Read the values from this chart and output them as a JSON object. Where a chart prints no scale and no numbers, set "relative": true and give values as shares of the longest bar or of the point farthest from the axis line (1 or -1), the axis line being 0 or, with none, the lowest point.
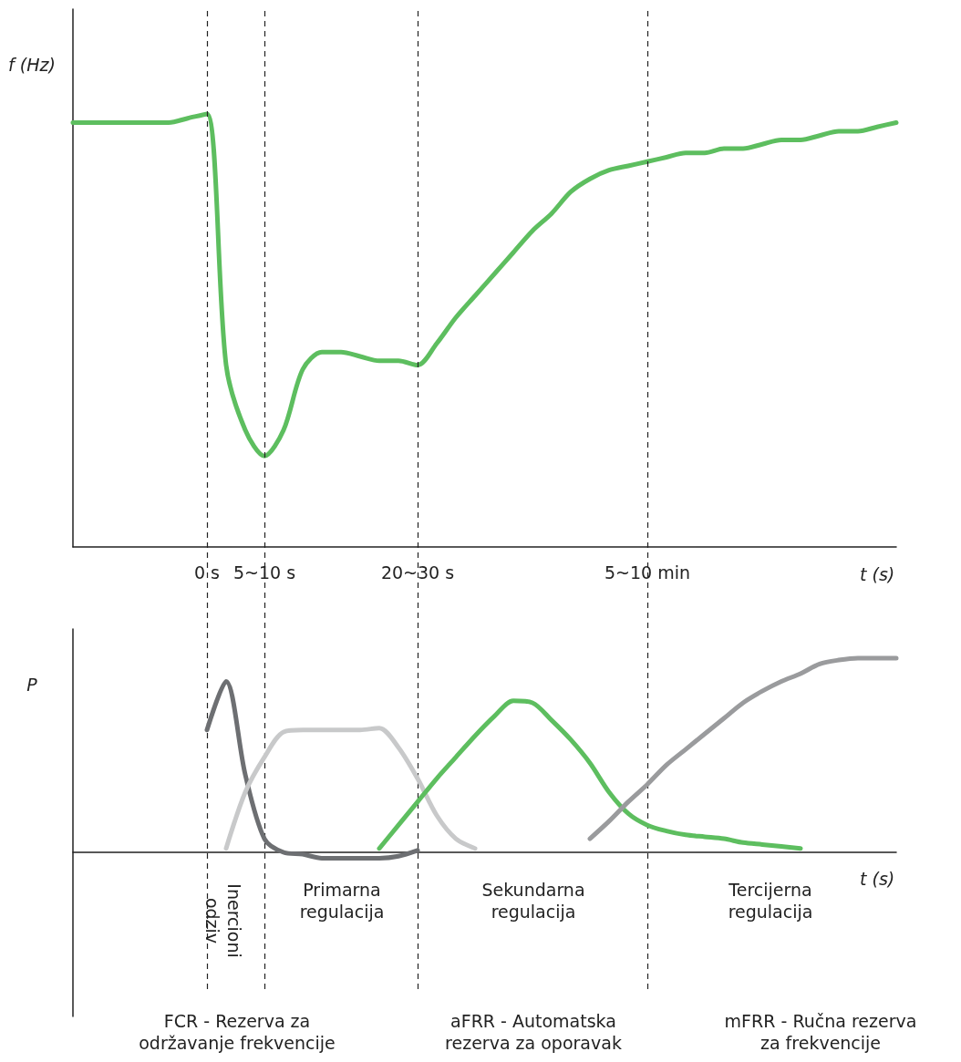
{
  "chart_data": [
    {
      "type": "line",
      "ylabel": "f (Hz)",
      "xlabel": "t (s)",
      "relative": true,
      "grid": false,
      "marker": "none",
      "categories": [
        null,
        null,
        null,
        null,
        null,
        null,
        null,
        "0 s",
        null,
        null,
        "5~10 s",
        null,
        null,
        null,
        null,
        null,
        null,
        null,
        "20~30 s",
        null,
        null,
        null,
        null,
        null,
        null,
        null,
        null,
        null,
        null,
        null,
        "5~10 min",
        null,
        null,
        null,
        null,
        null,
        null,
        null,
        null,
        null,
        null,
        null,
        null,
        null
      ],
      "series": [
        {
          "color": "#5dbe5f",
          "values": [
            0.98,
            0.98,
            0.98,
            0.98,
            0.98,
            0.98,
            0.99,
            1,
            0.42,
            0.27,
            0.21,
            0.27,
            0.41,
            0.45,
            0.45,
            0.44,
            0.43,
            0.43,
            0.42,
            0.47,
            0.53,
            0.58,
            0.63,
            0.68,
            0.73,
            0.77,
            0.82,
            0.85,
            0.87,
            0.88,
            0.89,
            0.9,
            0.91,
            0.91,
            0.92,
            0.92,
            0.93,
            0.94,
            0.94,
            0.95,
            0.96,
            0.96,
            0.97,
            0.98
          ]
        }
      ],
      "ref_lines": [
        {
          "axis": "x",
          "value": "0 s",
          "color": "#222222",
          "line_style": "dashed"
        },
        {
          "axis": "x",
          "value": "5~10 s",
          "color": "#222222",
          "line_style": "dashed"
        },
        {
          "axis": "x",
          "value": "20~30 s",
          "color": "#222222",
          "line_style": "dashed"
        },
        {
          "axis": "x",
          "value": "5~10 min",
          "color": "#222222",
          "line_style": "dashed"
        }
      ]
    },
    {
      "type": "line",
      "ylabel": "P",
      "xlabel": "t (s)",
      "relative": true,
      "grid": false,
      "marker": "none",
      "categories": [
        null,
        null,
        null,
        null,
        null,
        null,
        null,
        null,
        null,
        null,
        null,
        null,
        null,
        null,
        null,
        null,
        null,
        null,
        null,
        null,
        null,
        null,
        null,
        null,
        null,
        null,
        null,
        null,
        null,
        null,
        null,
        null,
        null,
        null,
        null,
        null,
        null,
        null,
        null,
        null,
        null,
        null,
        null,
        null
      ],
      "series": [
        {
          "color": "#6d6f72",
          "values": [
            null,
            null,
            null,
            null,
            null,
            null,
            null,
            0.63,
            0.88,
            0.4,
            0.07,
            0,
            -0.01,
            -0.03,
            -0.03,
            -0.03,
            -0.03,
            -0.02,
            0.01,
            null,
            null,
            null,
            null,
            null,
            null,
            null,
            null,
            null,
            null,
            null,
            null,
            null,
            null,
            null,
            null,
            null,
            null,
            null,
            null,
            null,
            null,
            null,
            null,
            null
          ]
        },
        {
          "color": "#c8c9ca",
          "values": [
            null,
            null,
            null,
            null,
            null,
            null,
            null,
            null,
            0.02,
            0.31,
            0.49,
            0.62,
            0.63,
            0.63,
            0.63,
            0.63,
            0.64,
            0.54,
            0.38,
            0.19,
            0.07,
            0.02,
            null,
            null,
            null,
            null,
            null,
            null,
            null,
            null,
            null,
            null,
            null,
            null,
            null,
            null,
            null,
            null,
            null,
            null,
            null,
            null,
            null,
            null
          ]
        },
        {
          "color": "#5dbe5f",
          "values": [
            null,
            null,
            null,
            null,
            null,
            null,
            null,
            null,
            null,
            null,
            null,
            null,
            null,
            null,
            null,
            null,
            0.02,
            0.14,
            0.26,
            0.38,
            0.49,
            0.6,
            0.7,
            0.78,
            0.77,
            0.68,
            0.58,
            0.46,
            0.31,
            0.2,
            0.14,
            0.11,
            0.09,
            0.08,
            0.07,
            0.05,
            0.04,
            0.03,
            0.02,
            null,
            null,
            null,
            null,
            null
          ]
        },
        {
          "color": "#9a9b9d",
          "values": [
            null,
            null,
            null,
            null,
            null,
            null,
            null,
            null,
            null,
            null,
            null,
            null,
            null,
            null,
            null,
            null,
            null,
            null,
            null,
            null,
            null,
            null,
            null,
            null,
            null,
            null,
            null,
            0.07,
            0.16,
            0.26,
            0.35,
            0.45,
            0.53,
            0.61,
            0.69,
            0.77,
            0.83,
            0.88,
            0.92,
            0.97,
            0.99,
            1,
            1,
            1
          ]
        }
      ],
      "annotations": [
        "Inercioni\nodziv",
        "Primarna\nregulacija",
        "Sekundarna\nregulacija",
        "Tercijerna\nregulacija",
        "FCR - Rezerva za\nodržavanje frekvencije",
        "aFRR - Automatska\nrezerva za oporavak",
        "mFRR - Ručna rezerva\nza frekvencije"
      ]
    }
  ]
}
